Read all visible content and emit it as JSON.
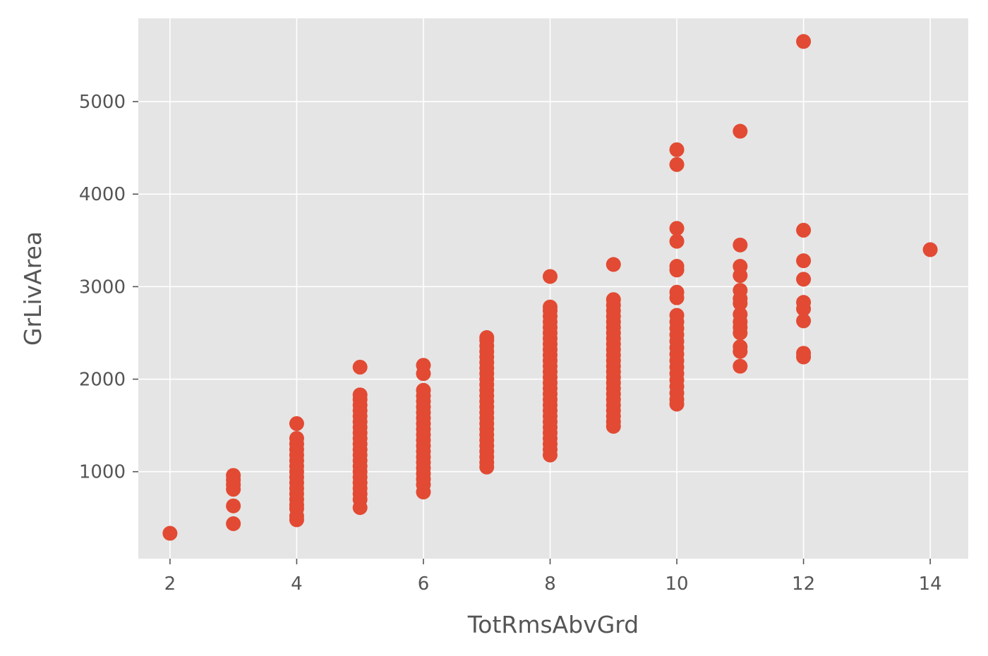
{
  "chart_data": {
    "type": "scatter",
    "title": "",
    "xlabel": "TotRmsAbvGrd",
    "ylabel": "GrLivArea",
    "xlim": [
      1.5,
      14.6
    ],
    "ylim": [
      60,
      5900
    ],
    "xticks": [
      2,
      4,
      6,
      8,
      10,
      12,
      14
    ],
    "yticks": [
      1000,
      2000,
      3000,
      4000,
      5000
    ],
    "grid": true,
    "legend": "none",
    "colors": {
      "background": "#E5E5E5",
      "grid": "#FFFFFF",
      "marker": "#E24A33",
      "text": "#555555"
    },
    "series": [
      {
        "points": [
          [
            2,
            334
          ],
          [
            3,
            438
          ],
          [
            3,
            630
          ],
          [
            3,
            810
          ],
          [
            3,
            860
          ],
          [
            3,
            912
          ],
          [
            3,
            960
          ],
          [
            4,
            480
          ],
          [
            4,
            520
          ],
          [
            4,
            600
          ],
          [
            4,
            640
          ],
          [
            4,
            700
          ],
          [
            4,
            760
          ],
          [
            4,
            820
          ],
          [
            4,
            880
          ],
          [
            4,
            940
          ],
          [
            4,
            1000
          ],
          [
            4,
            1060
          ],
          [
            4,
            1120
          ],
          [
            4,
            1180
          ],
          [
            4,
            1240
          ],
          [
            4,
            1300
          ],
          [
            4,
            1360
          ],
          [
            4,
            1520
          ],
          [
            5,
            612
          ],
          [
            5,
            700
          ],
          [
            5,
            760
          ],
          [
            5,
            820
          ],
          [
            5,
            880
          ],
          [
            5,
            940
          ],
          [
            5,
            1000
          ],
          [
            5,
            1060
          ],
          [
            5,
            1120
          ],
          [
            5,
            1180
          ],
          [
            5,
            1240
          ],
          [
            5,
            1300
          ],
          [
            5,
            1360
          ],
          [
            5,
            1420
          ],
          [
            5,
            1480
          ],
          [
            5,
            1540
          ],
          [
            5,
            1600
          ],
          [
            5,
            1660
          ],
          [
            5,
            1720
          ],
          [
            5,
            1780
          ],
          [
            5,
            1830
          ],
          [
            5,
            2130
          ],
          [
            6,
            780
          ],
          [
            6,
            860
          ],
          [
            6,
            920
          ],
          [
            6,
            980
          ],
          [
            6,
            1040
          ],
          [
            6,
            1100
          ],
          [
            6,
            1160
          ],
          [
            6,
            1220
          ],
          [
            6,
            1280
          ],
          [
            6,
            1340
          ],
          [
            6,
            1400
          ],
          [
            6,
            1460
          ],
          [
            6,
            1520
          ],
          [
            6,
            1580
          ],
          [
            6,
            1640
          ],
          [
            6,
            1700
          ],
          [
            6,
            1760
          ],
          [
            6,
            1820
          ],
          [
            6,
            1880
          ],
          [
            6,
            2060
          ],
          [
            6,
            2150
          ],
          [
            7,
            1050
          ],
          [
            7,
            1100
          ],
          [
            7,
            1160
          ],
          [
            7,
            1220
          ],
          [
            7,
            1280
          ],
          [
            7,
            1340
          ],
          [
            7,
            1400
          ],
          [
            7,
            1460
          ],
          [
            7,
            1520
          ],
          [
            7,
            1580
          ],
          [
            7,
            1640
          ],
          [
            7,
            1700
          ],
          [
            7,
            1760
          ],
          [
            7,
            1820
          ],
          [
            7,
            1880
          ],
          [
            7,
            1940
          ],
          [
            7,
            2000
          ],
          [
            7,
            2060
          ],
          [
            7,
            2120
          ],
          [
            7,
            2180
          ],
          [
            7,
            2240
          ],
          [
            7,
            2300
          ],
          [
            7,
            2360
          ],
          [
            7,
            2420
          ],
          [
            7,
            2450
          ],
          [
            8,
            1180
          ],
          [
            8,
            1240
          ],
          [
            8,
            1300
          ],
          [
            8,
            1360
          ],
          [
            8,
            1420
          ],
          [
            8,
            1480
          ],
          [
            8,
            1540
          ],
          [
            8,
            1600
          ],
          [
            8,
            1660
          ],
          [
            8,
            1720
          ],
          [
            8,
            1780
          ],
          [
            8,
            1840
          ],
          [
            8,
            1900
          ],
          [
            8,
            1960
          ],
          [
            8,
            2020
          ],
          [
            8,
            2080
          ],
          [
            8,
            2140
          ],
          [
            8,
            2200
          ],
          [
            8,
            2260
          ],
          [
            8,
            2320
          ],
          [
            8,
            2380
          ],
          [
            8,
            2440
          ],
          [
            8,
            2500
          ],
          [
            8,
            2560
          ],
          [
            8,
            2620
          ],
          [
            8,
            2680
          ],
          [
            8,
            2740
          ],
          [
            8,
            2780
          ],
          [
            8,
            3110
          ],
          [
            9,
            1490
          ],
          [
            9,
            1540
          ],
          [
            9,
            1600
          ],
          [
            9,
            1660
          ],
          [
            9,
            1720
          ],
          [
            9,
            1780
          ],
          [
            9,
            1840
          ],
          [
            9,
            1900
          ],
          [
            9,
            1960
          ],
          [
            9,
            2020
          ],
          [
            9,
            2080
          ],
          [
            9,
            2140
          ],
          [
            9,
            2200
          ],
          [
            9,
            2260
          ],
          [
            9,
            2320
          ],
          [
            9,
            2380
          ],
          [
            9,
            2440
          ],
          [
            9,
            2500
          ],
          [
            9,
            2560
          ],
          [
            9,
            2620
          ],
          [
            9,
            2680
          ],
          [
            9,
            2740
          ],
          [
            9,
            2800
          ],
          [
            9,
            2860
          ],
          [
            9,
            3240
          ],
          [
            10,
            1730
          ],
          [
            10,
            1780
          ],
          [
            10,
            1850
          ],
          [
            10,
            1920
          ],
          [
            10,
            1990
          ],
          [
            10,
            2060
          ],
          [
            10,
            2130
          ],
          [
            10,
            2200
          ],
          [
            10,
            2270
          ],
          [
            10,
            2340
          ],
          [
            10,
            2410
          ],
          [
            10,
            2480
          ],
          [
            10,
            2550
          ],
          [
            10,
            2620
          ],
          [
            10,
            2690
          ],
          [
            10,
            2880
          ],
          [
            10,
            2940
          ],
          [
            10,
            3180
          ],
          [
            10,
            3220
          ],
          [
            10,
            3490
          ],
          [
            10,
            3630
          ],
          [
            10,
            4320
          ],
          [
            10,
            4480
          ],
          [
            11,
            2140
          ],
          [
            11,
            2300
          ],
          [
            11,
            2350
          ],
          [
            11,
            2500
          ],
          [
            11,
            2560
          ],
          [
            11,
            2620
          ],
          [
            11,
            2700
          ],
          [
            11,
            2820
          ],
          [
            11,
            2870
          ],
          [
            11,
            2960
          ],
          [
            11,
            3120
          ],
          [
            11,
            3220
          ],
          [
            11,
            3450
          ],
          [
            11,
            4680
          ],
          [
            12,
            2240
          ],
          [
            12,
            2280
          ],
          [
            12,
            2630
          ],
          [
            12,
            2760
          ],
          [
            12,
            2830
          ],
          [
            12,
            3080
          ],
          [
            12,
            3280
          ],
          [
            12,
            3610
          ],
          [
            12,
            5650
          ],
          [
            14,
            3400
          ]
        ]
      }
    ]
  }
}
